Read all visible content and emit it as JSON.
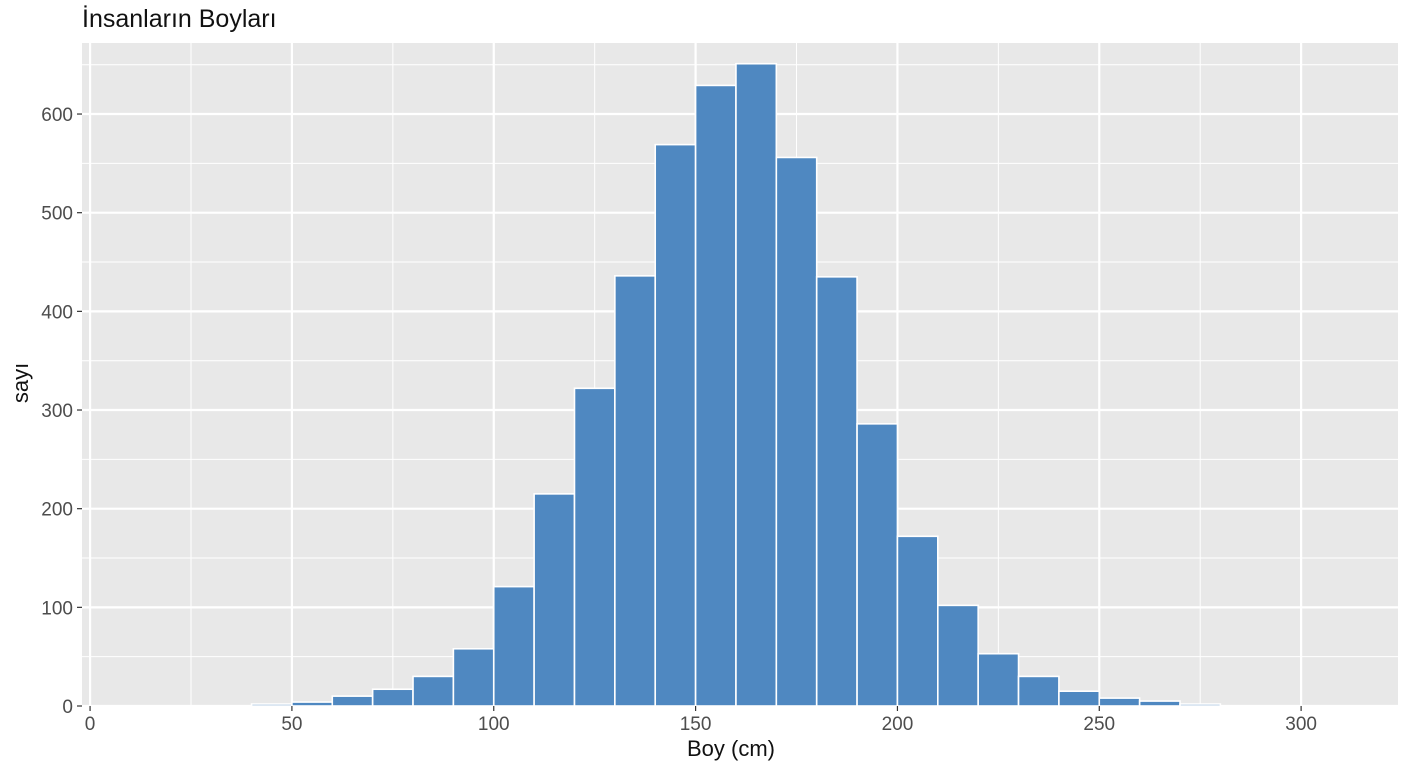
{
  "chart_data": {
    "type": "bar",
    "title": "İnsanların Boyları",
    "xlabel": "Boy (cm)",
    "ylabel": "sayı",
    "xlim": [
      -2,
      324
    ],
    "ylim": [
      0,
      672
    ],
    "xticks": [
      0,
      50,
      100,
      150,
      200,
      250,
      300
    ],
    "yticks": [
      0,
      100,
      200,
      300,
      400,
      500,
      600
    ],
    "grid": true,
    "legend": "none",
    "bar_color": "#4f88c1",
    "panel_color": "#e8e8e8",
    "grid_color": "#ffffff",
    "bins": [
      {
        "x0": 40,
        "x1": 50,
        "count": 2
      },
      {
        "x0": 50,
        "x1": 60,
        "count": 4
      },
      {
        "x0": 60,
        "x1": 70,
        "count": 10
      },
      {
        "x0": 70,
        "x1": 80,
        "count": 17
      },
      {
        "x0": 80,
        "x1": 90,
        "count": 30
      },
      {
        "x0": 90,
        "x1": 100,
        "count": 58
      },
      {
        "x0": 100,
        "x1": 110,
        "count": 121
      },
      {
        "x0": 110,
        "x1": 120,
        "count": 215
      },
      {
        "x0": 120,
        "x1": 130,
        "count": 322
      },
      {
        "x0": 130,
        "x1": 140,
        "count": 436
      },
      {
        "x0": 140,
        "x1": 150,
        "count": 569
      },
      {
        "x0": 150,
        "x1": 160,
        "count": 629
      },
      {
        "x0": 160,
        "x1": 170,
        "count": 651
      },
      {
        "x0": 170,
        "x1": 180,
        "count": 556
      },
      {
        "x0": 180,
        "x1": 190,
        "count": 435
      },
      {
        "x0": 190,
        "x1": 200,
        "count": 286
      },
      {
        "x0": 200,
        "x1": 210,
        "count": 172
      },
      {
        "x0": 210,
        "x1": 220,
        "count": 102
      },
      {
        "x0": 220,
        "x1": 230,
        "count": 53
      },
      {
        "x0": 230,
        "x1": 240,
        "count": 30
      },
      {
        "x0": 240,
        "x1": 250,
        "count": 15
      },
      {
        "x0": 250,
        "x1": 260,
        "count": 8
      },
      {
        "x0": 260,
        "x1": 270,
        "count": 5
      },
      {
        "x0": 270,
        "x1": 280,
        "count": 2
      }
    ]
  }
}
